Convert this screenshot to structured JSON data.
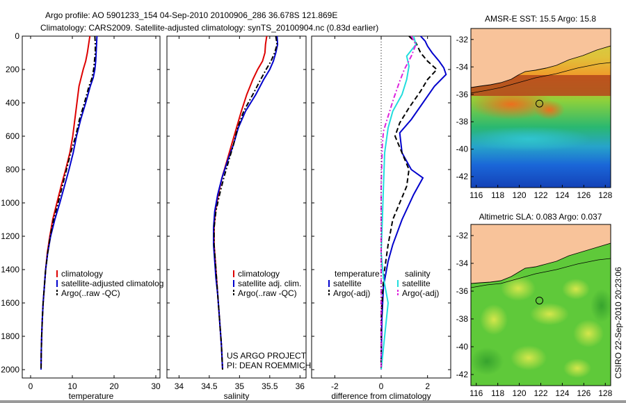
{
  "header": {
    "line1": "Argo profile: AO 5901233_154 04-Sep-2010 20100906_286 36.678S 121.869E",
    "line2": "Climatology: CARS2009. Satellite-adjusted climatology: synTS_20100904.nc (0.83d earlier)"
  },
  "credit": {
    "line1": "US ARGO PROJECT",
    "line2": "PI: DEAN ROEMMICH"
  },
  "side_stamp": "CSIRO 22-Sep-2010 20:23:06",
  "colors": {
    "climatology": "#dd0000",
    "satellite": "#0000cc",
    "argo": "#000000",
    "sat_salinity": "#22dddd",
    "argo_adj_salinity": "#dd22dd",
    "land": "#f8c39a"
  },
  "chart_data": [
    {
      "type": "line",
      "xlabel": "temperature",
      "ylabel": "",
      "xlim": [
        -2,
        31
      ],
      "ylim": [
        2050,
        0
      ],
      "x_ticks": [
        0,
        10,
        20,
        30
      ],
      "y_ticks": [
        0,
        200,
        400,
        600,
        800,
        1000,
        1200,
        1400,
        1600,
        1800,
        2000
      ],
      "legend": [
        "climatology",
        "satellite-adjusted climatolog",
        "Argo(..raw -QC)"
      ],
      "series": [
        {
          "name": "climatology",
          "style": "solid",
          "color": "#dd0000",
          "points": [
            [
              14.2,
              0
            ],
            [
              13.9,
              50
            ],
            [
              13.6,
              100
            ],
            [
              13.2,
              150
            ],
            [
              12.6,
              200
            ],
            [
              12.1,
              250
            ],
            [
              11.6,
              300
            ],
            [
              11.1,
              400
            ],
            [
              10.6,
              500
            ],
            [
              10.1,
              600
            ],
            [
              9.4,
              700
            ],
            [
              8.4,
              800
            ],
            [
              7.3,
              900
            ],
            [
              6.3,
              1000
            ],
            [
              5.3,
              1100
            ],
            [
              4.6,
              1200
            ],
            [
              4.0,
              1300
            ],
            [
              3.6,
              1400
            ],
            [
              3.3,
              1500
            ],
            [
              3.0,
              1600
            ],
            [
              2.8,
              1700
            ],
            [
              2.65,
              1800
            ],
            [
              2.55,
              1900
            ],
            [
              2.5,
              2000
            ]
          ]
        },
        {
          "name": "satellite-adjusted climatolog",
          "style": "solid",
          "color": "#0000cc",
          "points": [
            [
              15.9,
              0
            ],
            [
              15.8,
              50
            ],
            [
              15.7,
              100
            ],
            [
              15.6,
              150
            ],
            [
              15.4,
              200
            ],
            [
              15.0,
              250
            ],
            [
              14.3,
              300
            ],
            [
              13.2,
              400
            ],
            [
              12.0,
              500
            ],
            [
              11.0,
              600
            ],
            [
              10.2,
              700
            ],
            [
              9.2,
              800
            ],
            [
              8.1,
              900
            ],
            [
              7.0,
              1000
            ],
            [
              5.8,
              1100
            ],
            [
              4.8,
              1200
            ],
            [
              4.1,
              1300
            ],
            [
              3.6,
              1400
            ],
            [
              3.3,
              1500
            ],
            [
              3.0,
              1600
            ],
            [
              2.8,
              1700
            ],
            [
              2.65,
              1800
            ],
            [
              2.55,
              1900
            ],
            [
              2.5,
              2000
            ]
          ]
        },
        {
          "name": "Argo(..raw -QC)",
          "style": "dashdot",
          "color": "#000000",
          "points": [
            [
              15.4,
              0
            ],
            [
              15.5,
              50
            ],
            [
              15.5,
              100
            ],
            [
              15.3,
              150
            ],
            [
              15.1,
              200
            ],
            [
              14.6,
              260
            ],
            [
              14.0,
              300
            ],
            [
              12.9,
              400
            ],
            [
              11.7,
              500
            ],
            [
              10.8,
              600
            ],
            [
              9.6,
              700
            ],
            [
              8.6,
              800
            ],
            [
              7.6,
              900
            ],
            [
              6.6,
              1000
            ],
            [
              5.5,
              1100
            ],
            [
              4.7,
              1200
            ],
            [
              4.1,
              1300
            ],
            [
              3.6,
              1400
            ],
            [
              3.3,
              1500
            ],
            [
              3.0,
              1600
            ],
            [
              2.8,
              1700
            ],
            [
              2.65,
              1800
            ],
            [
              2.55,
              1900
            ],
            [
              2.5,
              2000
            ]
          ]
        }
      ]
    },
    {
      "type": "line",
      "xlabel": "salinity",
      "ylabel": "",
      "xlim": [
        33.8,
        36.1
      ],
      "ylim": [
        2050,
        0
      ],
      "x_ticks": [
        34,
        34.5,
        35,
        35.5,
        36
      ],
      "y_ticks": [
        0,
        200,
        400,
        600,
        800,
        1000,
        1200,
        1400,
        1600,
        1800,
        2000
      ],
      "legend": [
        "climatology",
        "satellite adj. clim.",
        "Argo(..raw -QC)"
      ],
      "series": [
        {
          "name": "climatology",
          "style": "solid",
          "color": "#dd0000",
          "points": [
            [
              35.45,
              0
            ],
            [
              35.43,
              50
            ],
            [
              35.42,
              100
            ],
            [
              35.38,
              150
            ],
            [
              35.3,
              200
            ],
            [
              35.22,
              260
            ],
            [
              35.12,
              350
            ],
            [
              35.03,
              450
            ],
            [
              34.95,
              550
            ],
            [
              34.87,
              650
            ],
            [
              34.79,
              750
            ],
            [
              34.71,
              850
            ],
            [
              34.65,
              950
            ],
            [
              34.6,
              1050
            ],
            [
              34.58,
              1150
            ],
            [
              34.58,
              1250
            ],
            [
              34.6,
              1350
            ],
            [
              34.62,
              1450
            ],
            [
              34.64,
              1550
            ],
            [
              34.66,
              1650
            ],
            [
              34.68,
              1750
            ],
            [
              34.7,
              1850
            ],
            [
              34.72,
              2000
            ]
          ]
        },
        {
          "name": "satellite adj. clim.",
          "style": "solid",
          "color": "#0000cc",
          "points": [
            [
              35.62,
              0
            ],
            [
              35.63,
              50
            ],
            [
              35.6,
              100
            ],
            [
              35.56,
              150
            ],
            [
              35.5,
              200
            ],
            [
              35.4,
              260
            ],
            [
              35.27,
              350
            ],
            [
              35.1,
              450
            ],
            [
              34.98,
              550
            ],
            [
              34.9,
              650
            ],
            [
              34.8,
              750
            ],
            [
              34.71,
              850
            ],
            [
              34.64,
              950
            ],
            [
              34.59,
              1050
            ],
            [
              34.57,
              1150
            ],
            [
              34.57,
              1250
            ],
            [
              34.59,
              1350
            ],
            [
              34.61,
              1450
            ],
            [
              34.64,
              1550
            ],
            [
              34.66,
              1650
            ],
            [
              34.68,
              1750
            ],
            [
              34.7,
              1850
            ],
            [
              34.72,
              2000
            ]
          ]
        },
        {
          "name": "Argo(..raw -QC)",
          "style": "dashdot",
          "color": "#000000",
          "points": [
            [
              35.6,
              0
            ],
            [
              35.62,
              50
            ],
            [
              35.58,
              100
            ],
            [
              35.52,
              150
            ],
            [
              35.44,
              200
            ],
            [
              35.35,
              260
            ],
            [
              35.22,
              350
            ],
            [
              35.07,
              450
            ],
            [
              34.97,
              550
            ],
            [
              34.9,
              650
            ],
            [
              34.82,
              750
            ],
            [
              34.74,
              850
            ],
            [
              34.67,
              950
            ],
            [
              34.61,
              1050
            ],
            [
              34.58,
              1150
            ],
            [
              34.58,
              1250
            ],
            [
              34.6,
              1350
            ],
            [
              34.62,
              1450
            ],
            [
              34.64,
              1550
            ],
            [
              34.66,
              1650
            ],
            [
              34.68,
              1750
            ],
            [
              34.7,
              1850
            ],
            [
              34.72,
              2000
            ]
          ]
        }
      ]
    },
    {
      "type": "line",
      "xlabel": "difference from climatology",
      "ylabel": "",
      "xlim": [
        -3,
        3
      ],
      "ylim": [
        2050,
        0
      ],
      "x_ticks": [
        -2,
        0,
        2
      ],
      "y_ticks": [
        0,
        200,
        400,
        600,
        800,
        1000,
        1200,
        1400,
        1600,
        1800,
        2000
      ],
      "legend_groups": {
        "left_title": "temperature",
        "right_title": "salinity"
      },
      "legend": [
        "satellite",
        "Argo(-adj)",
        "satellite",
        "Argo(-adj)"
      ],
      "series": [
        {
          "name": "satellite",
          "group": "temperature",
          "style": "solid",
          "color": "#0000cc",
          "points": [
            [
              1.7,
              0
            ],
            [
              1.9,
              30
            ],
            [
              2.0,
              60
            ],
            [
              2.2,
              100
            ],
            [
              2.5,
              150
            ],
            [
              2.7,
              190
            ],
            [
              2.8,
              230
            ],
            [
              2.3,
              300
            ],
            [
              1.8,
              400
            ],
            [
              1.3,
              500
            ],
            [
              0.8,
              580
            ],
            [
              0.9,
              700
            ],
            [
              1.3,
              800
            ],
            [
              1.8,
              850
            ],
            [
              1.4,
              950
            ],
            [
              0.9,
              1100
            ],
            [
              0.5,
              1250
            ],
            [
              0.3,
              1350
            ],
            [
              0.1,
              1500
            ],
            [
              0.03,
              1700
            ],
            [
              0.0,
              2000
            ]
          ]
        },
        {
          "name": "Argo(-adj)",
          "group": "temperature",
          "style": "dashed",
          "color": "#000000",
          "points": [
            [
              1.2,
              0
            ],
            [
              1.5,
              40
            ],
            [
              1.7,
              100
            ],
            [
              2.0,
              150
            ],
            [
              2.4,
              200
            ],
            [
              2.0,
              260
            ],
            [
              1.7,
              330
            ],
            [
              1.2,
              430
            ],
            [
              0.8,
              520
            ],
            [
              0.6,
              600
            ],
            [
              0.9,
              700
            ],
            [
              1.2,
              800
            ],
            [
              1.1,
              900
            ],
            [
              0.8,
              1000
            ],
            [
              0.5,
              1100
            ],
            [
              0.3,
              1250
            ],
            [
              0.1,
              1450
            ],
            [
              0.0,
              1700
            ],
            [
              0.0,
              2000
            ]
          ]
        },
        {
          "name": "satellite",
          "group": "salinity",
          "style": "solid",
          "color": "#22dddd",
          "points": [
            [
              1.4,
              0
            ],
            [
              1.5,
              50
            ],
            [
              1.1,
              120
            ],
            [
              1.2,
              180
            ],
            [
              1.1,
              260
            ],
            [
              0.9,
              350
            ],
            [
              0.5,
              450
            ],
            [
              0.3,
              550
            ],
            [
              0.15,
              700
            ],
            [
              0.1,
              900
            ],
            [
              0.05,
              1100
            ],
            [
              0.0,
              1300
            ],
            [
              0.1,
              1450
            ],
            [
              0.3,
              1600
            ],
            [
              0.15,
              1800
            ],
            [
              0.0,
              2000
            ]
          ]
        },
        {
          "name": "Argo(-adj)",
          "group": "salinity",
          "style": "dashdot",
          "color": "#dd22dd",
          "points": [
            [
              1.3,
              0
            ],
            [
              1.5,
              50
            ],
            [
              1.3,
              120
            ],
            [
              1.0,
              200
            ],
            [
              0.8,
              270
            ],
            [
              0.55,
              370
            ],
            [
              0.3,
              480
            ],
            [
              0.1,
              570
            ],
            [
              0.05,
              650
            ],
            [
              0.03,
              750
            ],
            [
              0.0,
              900
            ],
            [
              0.0,
              1300
            ],
            [
              0.0,
              2000
            ]
          ]
        },
        {
          "name": "zero",
          "group": "reference",
          "style": "dotted",
          "color": "#000000",
          "points": [
            [
              0,
              0
            ],
            [
              0,
              2000
            ]
          ]
        }
      ]
    }
  ],
  "maps": [
    {
      "title": "AMSR-E SST: 15.5 Argo: 15.8",
      "x_ticks": [
        116,
        118,
        120,
        122,
        124,
        126,
        128
      ],
      "y_ticks": [
        -32,
        -34,
        -36,
        -38,
        -40,
        -42
      ],
      "xlim": [
        115.5,
        128.5
      ],
      "ylim": [
        -42.8,
        -31.2
      ],
      "marker": [
        121.869,
        -36.678
      ]
    },
    {
      "title": "Altimetric SLA: 0.083 Argo: 0.037",
      "x_ticks": [
        116,
        118,
        120,
        122,
        124,
        126,
        128
      ],
      "y_ticks": [
        -32,
        -34,
        -36,
        -38,
        -40,
        -42
      ],
      "xlim": [
        115.5,
        128.5
      ],
      "ylim": [
        -42.8,
        -31.2
      ],
      "marker": [
        121.869,
        -36.678
      ]
    }
  ]
}
